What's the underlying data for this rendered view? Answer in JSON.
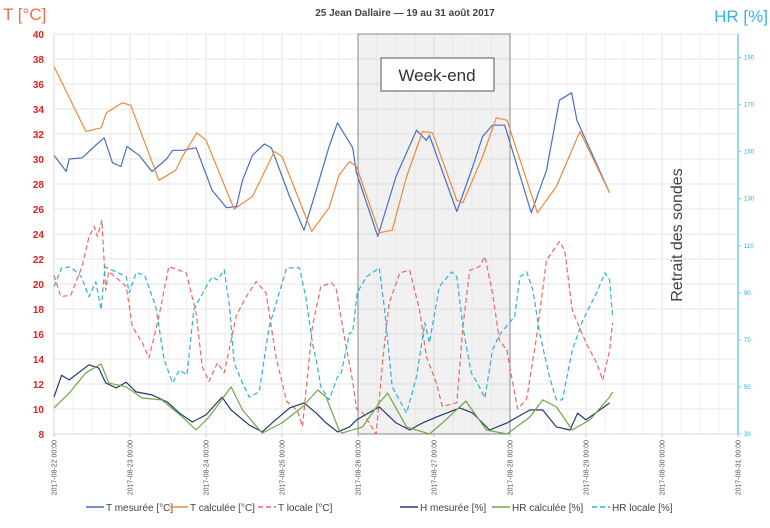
{
  "chart_data": {
    "type": "line",
    "title": "25 Jean Dallaire — 19 au 31 août 2017",
    "ylabel_left": "T [°C]",
    "ylabel_right": "HR [%]",
    "ylim_left": [
      8,
      40
    ],
    "ylim_right": [
      30,
      200
    ],
    "yticks_left": [
      "40",
      "38",
      "36",
      "34",
      "32",
      "30",
      "28",
      "26",
      "24",
      "22",
      "20",
      "18",
      "16",
      "14",
      "12",
      "10",
      "8"
    ],
    "yticks_right": [
      "190",
      "170",
      "150",
      "130",
      "110",
      "90",
      "70",
      "50",
      "30"
    ],
    "xticks": [
      "2017-08-22 00:00",
      "2017-08-23 00:00",
      "2017-08-24 00:00",
      "2017-08-25 00:00",
      "2017-08-26 00:00",
      "2017-08-27 00:00",
      "2017-08-28 00:00",
      "2017-08-29 00:00",
      "2017-08-30 00:00",
      "2017-08-31 00:00"
    ],
    "grid": true,
    "legend_position": "bottom",
    "annotations": {
      "weekend_label": "Week-end",
      "weekend_range_days": [
        4,
        6
      ],
      "probe_removal": "Retrait des sondes"
    },
    "series": [
      {
        "name": "T mesurée [°C]",
        "axis": "left",
        "color": "#4a6fc0",
        "dash": false,
        "points": [
          [
            0,
            30.3
          ],
          [
            0.16,
            29.0
          ],
          [
            0.2,
            30
          ],
          [
            0.37,
            30.1
          ],
          [
            0.53,
            31
          ],
          [
            0.66,
            31.7
          ],
          [
            0.77,
            29.7
          ],
          [
            0.88,
            29.4
          ],
          [
            0.96,
            31
          ],
          [
            1.12,
            30.3
          ],
          [
            1.29,
            29
          ],
          [
            1.48,
            30
          ],
          [
            1.56,
            30.7
          ],
          [
            1.69,
            30.7
          ],
          [
            1.87,
            30.9
          ],
          [
            2.08,
            27.5
          ],
          [
            2.27,
            26.1
          ],
          [
            2.4,
            26.2
          ],
          [
            2.48,
            28.3
          ],
          [
            2.61,
            30.3
          ],
          [
            2.77,
            31.2
          ],
          [
            2.86,
            30.9
          ],
          [
            3.1,
            27
          ],
          [
            3.29,
            24.3
          ],
          [
            3.45,
            27.5
          ],
          [
            3.62,
            31
          ],
          [
            3.73,
            32.9
          ],
          [
            3.93,
            30.9
          ],
          [
            3.98,
            28.9
          ],
          [
            4.26,
            23.8
          ],
          [
            4.5,
            28.6
          ],
          [
            4.77,
            32.3
          ],
          [
            4.9,
            31.5
          ],
          [
            4.94,
            31.9
          ],
          [
            5.3,
            25.8
          ],
          [
            5.51,
            29.4
          ],
          [
            5.64,
            31.8
          ],
          [
            5.77,
            32.7
          ],
          [
            5.93,
            32.7
          ],
          [
            6.28,
            25.7
          ],
          [
            6.48,
            29.1
          ],
          [
            6.65,
            34.7
          ],
          [
            6.81,
            35.3
          ],
          [
            6.88,
            33.1
          ],
          [
            7.31,
            27.3
          ]
        ]
      },
      {
        "name": "T calculée [°C]",
        "axis": "left",
        "color": "#ee8a3c",
        "dash": false,
        "points": [
          [
            0,
            37.4
          ],
          [
            0.42,
            32.2
          ],
          [
            0.62,
            32.5
          ],
          [
            0.69,
            33.7
          ],
          [
            0.9,
            34.5
          ],
          [
            1.01,
            34.3
          ],
          [
            1.38,
            28.3
          ],
          [
            1.6,
            29.1
          ],
          [
            1.69,
            30.2
          ],
          [
            1.88,
            32.1
          ],
          [
            2.0,
            31.5
          ],
          [
            2.37,
            26.0
          ],
          [
            2.61,
            27.0
          ],
          [
            2.9,
            30.6
          ],
          [
            3.0,
            30.2
          ],
          [
            3.39,
            24.2
          ],
          [
            3.62,
            26.1
          ],
          [
            3.75,
            28.7
          ],
          [
            3.89,
            29.8
          ],
          [
            3.98,
            29.4
          ],
          [
            4.28,
            24.1
          ],
          [
            4.45,
            24.3
          ],
          [
            4.64,
            28.6
          ],
          [
            4.85,
            32.2
          ],
          [
            4.98,
            32.1
          ],
          [
            5.3,
            26.7
          ],
          [
            5.38,
            26.5
          ],
          [
            5.64,
            30.2
          ],
          [
            5.82,
            33.3
          ],
          [
            5.96,
            33.1
          ],
          [
            6.36,
            25.7
          ],
          [
            6.61,
            27.8
          ],
          [
            6.92,
            32.2
          ],
          [
            7.31,
            27.3
          ]
        ]
      },
      {
        "name": "T locale [°C]",
        "axis": "left",
        "color": "#ee6868",
        "dash": true,
        "points": [
          [
            0,
            20.7
          ],
          [
            0.09,
            19
          ],
          [
            0.22,
            19.1
          ],
          [
            0.37,
            21.4
          ],
          [
            0.46,
            23.8
          ],
          [
            0.53,
            24.6
          ],
          [
            0.57,
            23.8
          ],
          [
            0.63,
            25.1
          ],
          [
            0.68,
            19.5
          ],
          [
            0.72,
            21
          ],
          [
            0.86,
            20.3
          ],
          [
            0.95,
            19.8
          ],
          [
            1.03,
            16.6
          ],
          [
            1.16,
            15.3
          ],
          [
            1.25,
            14.1
          ],
          [
            1.38,
            17.4
          ],
          [
            1.51,
            21.4
          ],
          [
            1.74,
            20.9
          ],
          [
            1.87,
            17.7
          ],
          [
            1.95,
            13.4
          ],
          [
            2.04,
            12.2
          ],
          [
            2.15,
            13.7
          ],
          [
            2.24,
            12.9
          ],
          [
            2.4,
            17.5
          ],
          [
            2.53,
            19
          ],
          [
            2.66,
            20.2
          ],
          [
            2.79,
            19.3
          ],
          [
            2.92,
            14.2
          ],
          [
            3.06,
            10.6
          ],
          [
            3.2,
            9.9
          ],
          [
            3.27,
            8.6
          ],
          [
            3.4,
            16.6
          ],
          [
            3.51,
            19.8
          ],
          [
            3.65,
            20.1
          ],
          [
            3.71,
            19.7
          ],
          [
            3.82,
            15.8
          ],
          [
            3.93,
            12.2
          ],
          [
            3.98,
            10
          ],
          [
            4.06,
            9.7
          ],
          [
            4.24,
            8
          ],
          [
            4.33,
            14.2
          ],
          [
            4.41,
            18.5
          ],
          [
            4.55,
            20.9
          ],
          [
            4.68,
            21.1
          ],
          [
            4.81,
            17.9
          ],
          [
            4.9,
            14.2
          ],
          [
            5.03,
            12.1
          ],
          [
            5.11,
            10.2
          ],
          [
            5.3,
            10.5
          ],
          [
            5.38,
            16.6
          ],
          [
            5.47,
            21.1
          ],
          [
            5.6,
            21.4
          ],
          [
            5.67,
            22.2
          ],
          [
            5.77,
            19.3
          ],
          [
            5.86,
            15.5
          ],
          [
            5.96,
            14.7
          ],
          [
            6.02,
            12.6
          ],
          [
            6.1,
            10
          ],
          [
            6.22,
            10.8
          ],
          [
            6.35,
            15.8
          ],
          [
            6.48,
            21.9
          ],
          [
            6.65,
            23.4
          ],
          [
            6.72,
            22.7
          ],
          [
            6.82,
            17.9
          ],
          [
            7.0,
            15.3
          ],
          [
            7.14,
            13.7
          ],
          [
            7.22,
            12.3
          ],
          [
            7.31,
            14.7
          ],
          [
            7.35,
            16.9
          ]
        ]
      },
      {
        "name": "H mesurée [%]",
        "axis": "right",
        "color": "#243a73",
        "dash": false,
        "points": [
          [
            0,
            45.7
          ],
          [
            0.1,
            55
          ],
          [
            0.2,
            53
          ],
          [
            0.46,
            59.4
          ],
          [
            0.59,
            58
          ],
          [
            0.68,
            51.7
          ],
          [
            0.82,
            49.6
          ],
          [
            0.95,
            52
          ],
          [
            1.08,
            47.9
          ],
          [
            1.29,
            46.6
          ],
          [
            1.49,
            43.6
          ],
          [
            1.65,
            38.9
          ],
          [
            1.82,
            35.1
          ],
          [
            2.0,
            38.1
          ],
          [
            2.21,
            45.7
          ],
          [
            2.33,
            40.2
          ],
          [
            2.57,
            33.8
          ],
          [
            2.74,
            30.9
          ],
          [
            2.87,
            34.7
          ],
          [
            3.1,
            41.1
          ],
          [
            3.29,
            43.2
          ],
          [
            3.45,
            38.9
          ],
          [
            3.58,
            34.7
          ],
          [
            3.73,
            30.9
          ],
          [
            3.89,
            33
          ],
          [
            3.98,
            36
          ],
          [
            4.28,
            41.5
          ],
          [
            4.5,
            34.7
          ],
          [
            4.68,
            31.7
          ],
          [
            4.85,
            34.7
          ],
          [
            5.03,
            37.2
          ],
          [
            5.34,
            41.1
          ],
          [
            5.51,
            38.9
          ],
          [
            5.73,
            31.7
          ],
          [
            5.96,
            34.7
          ],
          [
            6.26,
            40.2
          ],
          [
            6.43,
            40.2
          ],
          [
            6.61,
            33
          ],
          [
            6.79,
            31.7
          ],
          [
            6.89,
            38.9
          ],
          [
            7.0,
            36
          ],
          [
            7.31,
            43.2
          ]
        ]
      },
      {
        "name": "HR calculée [%]",
        "axis": "right",
        "color": "#70a845",
        "dash": false,
        "points": [
          [
            0,
            41.1
          ],
          [
            0.2,
            47.4
          ],
          [
            0.42,
            56
          ],
          [
            0.62,
            59.8
          ],
          [
            0.72,
            51.7
          ],
          [
            0.95,
            50
          ],
          [
            1.16,
            45.3
          ],
          [
            1.42,
            44.5
          ],
          [
            1.69,
            37.2
          ],
          [
            1.87,
            31.7
          ],
          [
            2.04,
            37.2
          ],
          [
            2.33,
            50
          ],
          [
            2.48,
            40.2
          ],
          [
            2.74,
            30.4
          ],
          [
            3.0,
            34.7
          ],
          [
            3.27,
            41.5
          ],
          [
            3.47,
            48.7
          ],
          [
            3.58,
            45.7
          ],
          [
            3.75,
            31.7
          ],
          [
            3.79,
            30.4
          ],
          [
            4.06,
            33
          ],
          [
            4.28,
            43.2
          ],
          [
            4.39,
            47.4
          ],
          [
            4.64,
            33
          ],
          [
            4.94,
            30
          ],
          [
            5.11,
            34.7
          ],
          [
            5.42,
            44
          ],
          [
            5.69,
            31.7
          ],
          [
            5.96,
            30
          ],
          [
            6.26,
            37.2
          ],
          [
            6.43,
            44.5
          ],
          [
            6.61,
            41.5
          ],
          [
            6.82,
            31.7
          ],
          [
            7.05,
            36
          ],
          [
            7.31,
            45.7
          ],
          [
            7.35,
            47.9
          ]
        ]
      },
      {
        "name": "HR locale [%]",
        "axis": "right",
        "color": "#2eb0e0",
        "dash": true,
        "points": [
          [
            0,
            92.6
          ],
          [
            0.1,
            100.6
          ],
          [
            0.22,
            101
          ],
          [
            0.36,
            96.8
          ],
          [
            0.46,
            88.3
          ],
          [
            0.55,
            94.7
          ],
          [
            0.62,
            82.8
          ],
          [
            0.67,
            101
          ],
          [
            0.82,
            98.9
          ],
          [
            0.95,
            96.8
          ],
          [
            0.99,
            90
          ],
          [
            1.08,
            98.5
          ],
          [
            1.19,
            97.7
          ],
          [
            1.34,
            84
          ],
          [
            1.45,
            61.5
          ],
          [
            1.56,
            51.7
          ],
          [
            1.65,
            57.2
          ],
          [
            1.75,
            55.1
          ],
          [
            1.84,
            82.8
          ],
          [
            1.98,
            91.3
          ],
          [
            2.08,
            96.8
          ],
          [
            2.15,
            95.5
          ],
          [
            2.24,
            99.8
          ],
          [
            2.31,
            84
          ],
          [
            2.37,
            60.2
          ],
          [
            2.48,
            51.7
          ],
          [
            2.57,
            45.7
          ],
          [
            2.7,
            47.9
          ],
          [
            2.83,
            75.5
          ],
          [
            3.06,
            100.6
          ],
          [
            3.23,
            100.6
          ],
          [
            3.32,
            87
          ],
          [
            3.4,
            68.7
          ],
          [
            3.45,
            61.5
          ],
          [
            3.51,
            50
          ],
          [
            3.62,
            44.5
          ],
          [
            3.73,
            54.3
          ],
          [
            3.78,
            56
          ],
          [
            3.89,
            73
          ],
          [
            3.93,
            73
          ],
          [
            3.99,
            90
          ],
          [
            4.11,
            96.8
          ],
          [
            4.28,
            100.6
          ],
          [
            4.35,
            82.8
          ],
          [
            4.45,
            50
          ],
          [
            4.64,
            38.9
          ],
          [
            4.77,
            54.3
          ],
          [
            4.88,
            77.2
          ],
          [
            4.94,
            68.7
          ],
          [
            5.07,
            92.6
          ],
          [
            5.23,
            98.9
          ],
          [
            5.3,
            96.8
          ],
          [
            5.38,
            75.5
          ],
          [
            5.49,
            56
          ],
          [
            5.57,
            51.7
          ],
          [
            5.67,
            45.3
          ],
          [
            5.77,
            65.7
          ],
          [
            5.86,
            72.1
          ],
          [
            5.99,
            77.2
          ],
          [
            6.06,
            79.8
          ],
          [
            6.13,
            96.8
          ],
          [
            6.22,
            98.9
          ],
          [
            6.3,
            91.3
          ],
          [
            6.39,
            73
          ],
          [
            6.52,
            54.3
          ],
          [
            6.61,
            44.5
          ],
          [
            6.69,
            44.5
          ],
          [
            6.82,
            65.7
          ],
          [
            6.96,
            78.5
          ],
          [
            7.14,
            90
          ],
          [
            7.25,
            98.5
          ],
          [
            7.31,
            95.5
          ],
          [
            7.35,
            79.8
          ]
        ]
      }
    ]
  }
}
